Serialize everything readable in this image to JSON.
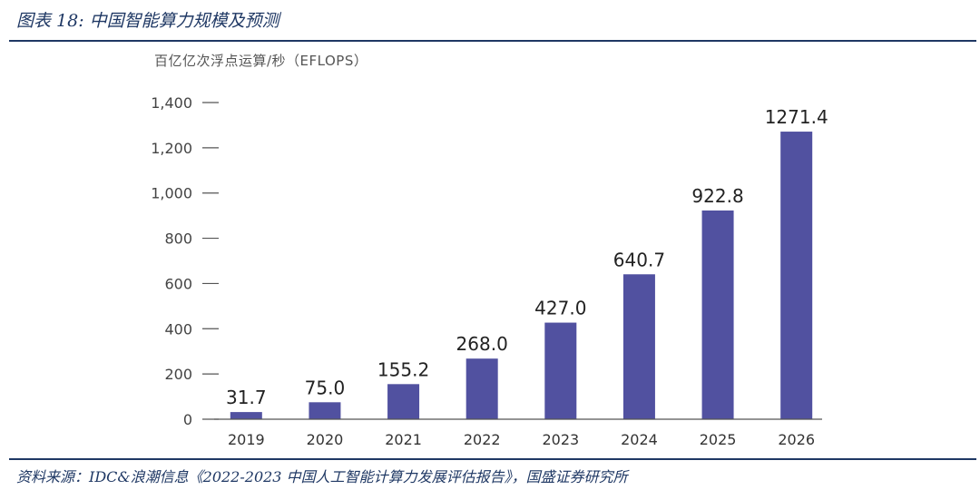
{
  "figure": {
    "title": "图表 18:  中国智能算力规模及预测",
    "source": "资料来源：IDC&浪潮信息《2022-2023 中国人工智能计算力发展评估报告》，国盛证券研究所"
  },
  "chart_data": {
    "type": "bar",
    "title": "中国智能算力规模及预测",
    "ylabel": "百亿亿次浮点运算/秒（EFLOPS）",
    "xlabel": "",
    "categories": [
      "2019",
      "2020",
      "2021",
      "2022",
      "2023",
      "2024",
      "2025",
      "2026"
    ],
    "values": [
      31.7,
      75.0,
      155.2,
      268.0,
      427.0,
      640.7,
      922.8,
      1271.4
    ],
    "value_labels": [
      "31.7",
      "75.0",
      "155.2",
      "268.0",
      "427.0",
      "640.7",
      "922.8",
      "1271.4"
    ],
    "ylim": [
      0,
      1400
    ],
    "yticks": [
      0,
      200,
      400,
      600,
      800,
      1000,
      1200,
      1400
    ],
    "ytick_labels": [
      "0",
      "200",
      "400",
      "600",
      "800",
      "1,000",
      "1,200",
      "1,400"
    ],
    "bar_color": "#5151a0",
    "axis_color": "#555555",
    "grid": false,
    "legend": "none"
  }
}
